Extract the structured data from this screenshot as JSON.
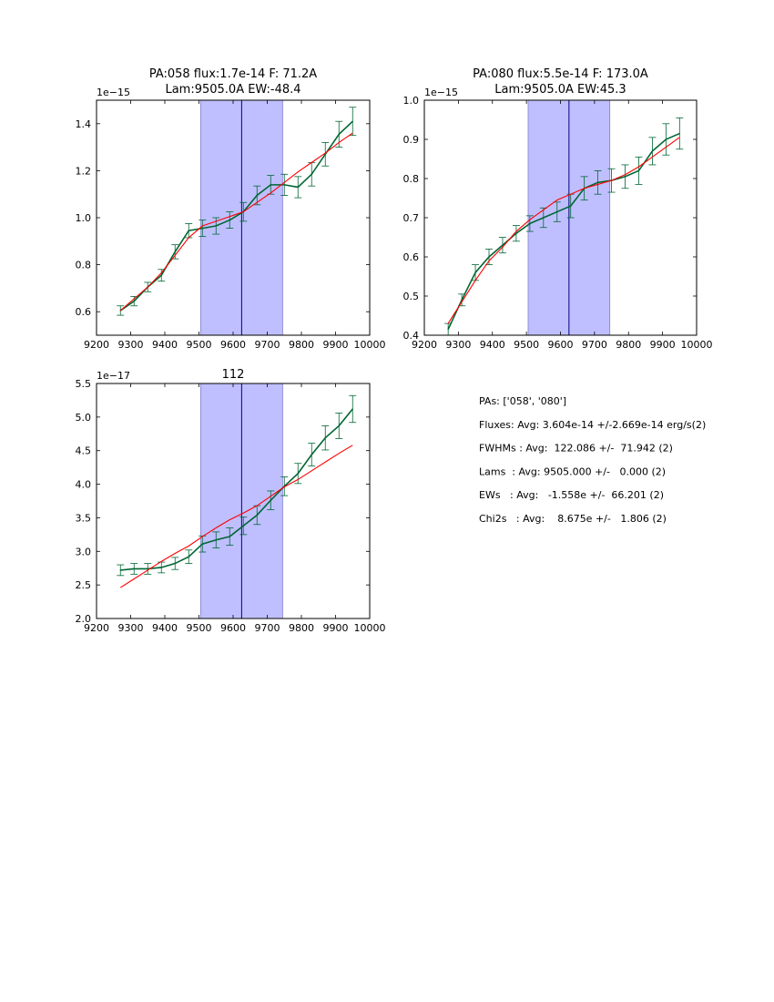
{
  "chart_data": [
    {
      "type": "line",
      "title_lines": [
        "PA:058 flux:1.7e-14 F: 71.2A",
        "Lam:9505.0A EW:-48.4"
      ],
      "xlim": [
        9200,
        10000
      ],
      "ylim": [
        0.5,
        1.5
      ],
      "x_ticks": [
        9200,
        9300,
        9400,
        9500,
        9600,
        9700,
        9800,
        9900,
        10000
      ],
      "y_ticks": [
        0.6,
        0.8,
        1.0,
        1.2,
        1.4
      ],
      "y_tick_labels": [
        "0.6",
        "0.8",
        "1.0",
        "1.2",
        "1.4"
      ],
      "offset_label": "1e−15",
      "shaded_band": [
        9505,
        9745
      ],
      "center_line": 9625,
      "x": [
        9270,
        9310,
        9350,
        9390,
        9430,
        9470,
        9510,
        9550,
        9590,
        9630,
        9670,
        9710,
        9750,
        9790,
        9830,
        9870,
        9910,
        9950
      ],
      "series": [
        {
          "name": "data",
          "color": "#006633",
          "values": [
            0.605,
            0.645,
            0.705,
            0.755,
            0.855,
            0.945,
            0.955,
            0.965,
            0.99,
            1.025,
            1.095,
            1.14,
            1.14,
            1.13,
            1.185,
            1.27,
            1.355,
            1.41
          ],
          "errors": [
            0.02,
            0.02,
            0.02,
            0.025,
            0.03,
            0.03,
            0.035,
            0.035,
            0.035,
            0.04,
            0.04,
            0.04,
            0.045,
            0.045,
            0.05,
            0.05,
            0.055,
            0.06
          ]
        },
        {
          "name": "fit",
          "color": "#ff0000",
          "values": [
            0.605,
            0.655,
            0.705,
            0.765,
            0.84,
            0.915,
            0.965,
            0.985,
            1.005,
            1.025,
            1.065,
            1.105,
            1.15,
            1.195,
            1.235,
            1.275,
            1.32,
            1.36
          ]
        }
      ]
    },
    {
      "type": "line",
      "title_lines": [
        "PA:080 flux:5.5e-14 F: 173.0A",
        "Lam:9505.0A EW:45.3"
      ],
      "xlim": [
        9200,
        10000
      ],
      "ylim": [
        0.4,
        1.0
      ],
      "x_ticks": [
        9200,
        9300,
        9400,
        9500,
        9600,
        9700,
        9800,
        9900,
        10000
      ],
      "y_ticks": [
        0.4,
        0.5,
        0.6,
        0.7,
        0.8,
        0.9,
        1.0
      ],
      "y_tick_labels": [
        "0.4",
        "0.5",
        "0.6",
        "0.7",
        "0.8",
        "0.9",
        "1.0"
      ],
      "offset_label": "1e−15",
      "shaded_band": [
        9505,
        9745
      ],
      "center_line": 9625,
      "x": [
        9270,
        9310,
        9350,
        9390,
        9430,
        9470,
        9510,
        9550,
        9590,
        9630,
        9670,
        9710,
        9750,
        9790,
        9830,
        9870,
        9910,
        9950
      ],
      "series": [
        {
          "name": "data",
          "color": "#006633",
          "values": [
            0.415,
            0.49,
            0.56,
            0.6,
            0.63,
            0.66,
            0.685,
            0.7,
            0.715,
            0.73,
            0.775,
            0.79,
            0.795,
            0.805,
            0.82,
            0.87,
            0.9,
            0.915
          ],
          "errors": [
            0.015,
            0.015,
            0.02,
            0.02,
            0.02,
            0.02,
            0.02,
            0.025,
            0.025,
            0.03,
            0.03,
            0.03,
            0.03,
            0.03,
            0.035,
            0.035,
            0.04,
            0.04
          ]
        },
        {
          "name": "fit",
          "color": "#ff0000",
          "values": [
            0.43,
            0.485,
            0.54,
            0.59,
            0.625,
            0.665,
            0.695,
            0.72,
            0.745,
            0.76,
            0.775,
            0.785,
            0.795,
            0.81,
            0.83,
            0.855,
            0.88,
            0.905
          ]
        }
      ]
    },
    {
      "type": "line",
      "title_lines": [
        "112"
      ],
      "xlim": [
        9200,
        10000
      ],
      "ylim": [
        2.0,
        5.5
      ],
      "x_ticks": [
        9200,
        9300,
        9400,
        9500,
        9600,
        9700,
        9800,
        9900,
        10000
      ],
      "y_ticks": [
        2.0,
        2.5,
        3.0,
        3.5,
        4.0,
        4.5,
        5.0,
        5.5
      ],
      "y_tick_labels": [
        "2.0",
        "2.5",
        "3.0",
        "3.5",
        "4.0",
        "4.5",
        "5.0",
        "5.5"
      ],
      "offset_label": "1e−17",
      "shaded_band": [
        9505,
        9745
      ],
      "center_line": 9625,
      "x": [
        9270,
        9310,
        9350,
        9390,
        9430,
        9470,
        9510,
        9550,
        9590,
        9630,
        9670,
        9710,
        9750,
        9790,
        9830,
        9870,
        9910,
        9950
      ],
      "series": [
        {
          "name": "data",
          "color": "#006633",
          "values": [
            2.72,
            2.74,
            2.74,
            2.76,
            2.82,
            2.92,
            3.11,
            3.17,
            3.22,
            3.38,
            3.54,
            3.76,
            3.97,
            4.16,
            4.44,
            4.69,
            4.87,
            5.12
          ],
          "errors": [
            0.08,
            0.08,
            0.08,
            0.08,
            0.09,
            0.1,
            0.12,
            0.12,
            0.13,
            0.13,
            0.14,
            0.14,
            0.14,
            0.15,
            0.17,
            0.18,
            0.19,
            0.2
          ]
        },
        {
          "name": "fit",
          "color": "#ff0000",
          "values": [
            2.46,
            2.59,
            2.72,
            2.85,
            2.97,
            3.08,
            3.22,
            3.35,
            3.47,
            3.57,
            3.68,
            3.82,
            3.96,
            4.07,
            4.2,
            4.33,
            4.46,
            4.58
          ]
        }
      ]
    }
  ],
  "summary": {
    "lines": [
      "PAs: ['058', '080']",
      "Fluxes: Avg: 3.604e-14 +/-2.669e-14 erg/s(2)",
      "FWHMs : Avg:  122.086 +/-  71.942 (2)",
      "Lams  : Avg: 9505.000 +/-   0.000 (2)",
      "EWs   : Avg:   -1.558e +/-  66.201 (2)",
      "Chi2s   : Avg:    8.675e +/-   1.806 (2)"
    ]
  },
  "colors": {
    "band_fill": "#bfbfff",
    "band_edge": "#7f7fcc",
    "center_line": "#000080",
    "axis": "#000000"
  }
}
